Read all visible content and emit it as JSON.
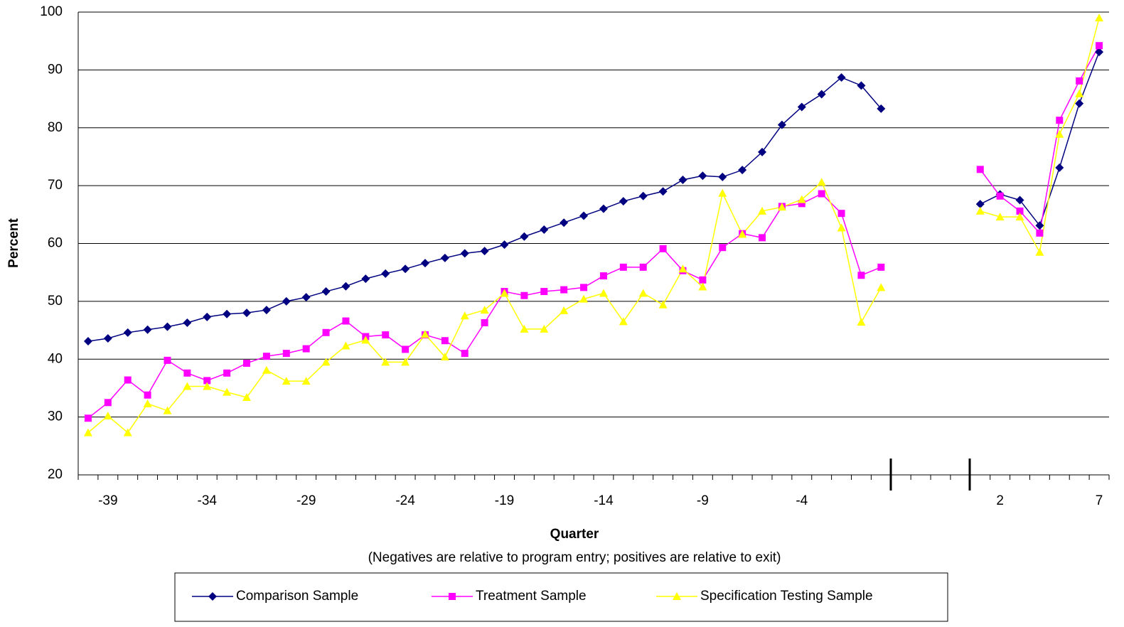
{
  "chart_data": {
    "type": "line",
    "y_label": "Percent",
    "x_label": "Quarter",
    "x_label_note": "(Negatives are relative to program entry; positives are relative to exit)",
    "categories": [
      null,
      "-39",
      null,
      null,
      null,
      null,
      "-34",
      null,
      null,
      null,
      null,
      "-29",
      null,
      null,
      null,
      null,
      "-24",
      null,
      null,
      null,
      null,
      "-19",
      null,
      null,
      null,
      null,
      "-14",
      null,
      null,
      null,
      null,
      "-9",
      null,
      null,
      null,
      null,
      "-4",
      null,
      null,
      null,
      null,
      null,
      null,
      null,
      null,
      null,
      "2",
      null,
      null,
      null,
      null,
      "7"
    ],
    "ylim": [
      20,
      100
    ],
    "yticks": [
      20,
      30,
      40,
      50,
      60,
      70,
      80,
      90,
      100
    ],
    "grid": true,
    "legend": "bottom",
    "series": [
      {
        "name": "Comparison Sample",
        "color": "#000080",
        "marker": "diamond",
        "values": [
          43.1,
          43.6,
          44.6,
          45.1,
          45.6,
          46.3,
          47.3,
          47.8,
          48.0,
          48.5,
          50.0,
          50.7,
          51.7,
          52.6,
          53.9,
          54.8,
          55.6,
          56.6,
          57.5,
          58.3,
          58.7,
          59.8,
          61.2,
          62.4,
          63.6,
          64.8,
          66.0,
          67.3,
          68.2,
          69.0,
          71.0,
          71.7,
          71.5,
          72.7,
          75.8,
          80.5,
          83.6,
          85.8,
          88.7,
          87.3,
          83.3,
          null,
          null,
          null,
          null,
          66.8,
          68.5,
          67.5,
          63.1,
          73.1,
          84.2,
          93.1
        ]
      },
      {
        "name": "Treatment Sample",
        "color": "#ff00ff",
        "marker": "square",
        "values": [
          29.8,
          32.5,
          36.4,
          33.8,
          39.8,
          37.6,
          36.3,
          37.6,
          39.3,
          40.5,
          41.0,
          41.8,
          44.6,
          46.6,
          43.9,
          44.2,
          41.7,
          44.2,
          43.2,
          41.0,
          46.3,
          51.7,
          51.0,
          51.7,
          52.0,
          52.4,
          54.4,
          55.9,
          55.9,
          59.1,
          55.3,
          53.7,
          59.3,
          61.7,
          61.0,
          66.4,
          66.9,
          68.6,
          65.2,
          54.5,
          55.9,
          null,
          null,
          null,
          null,
          72.8,
          68.2,
          65.6,
          61.8,
          81.3,
          88.1,
          94.2
        ]
      },
      {
        "name": "Specification Testing Sample",
        "color": "#ffff00",
        "marker": "triangle",
        "values": [
          27.3,
          30.2,
          27.3,
          32.3,
          31.1,
          35.3,
          35.3,
          34.3,
          33.4,
          38.1,
          36.2,
          36.2,
          39.5,
          42.3,
          43.3,
          39.5,
          39.5,
          44.3,
          40.4,
          47.5,
          48.5,
          51.4,
          45.2,
          45.2,
          48.4,
          50.4,
          51.4,
          46.5,
          51.4,
          49.4,
          55.6,
          52.5,
          68.7,
          61.6,
          65.6,
          66.3,
          67.6,
          70.6,
          62.7,
          46.4,
          52.4,
          null,
          null,
          null,
          null,
          65.6,
          64.6,
          64.6,
          58.5,
          78.9,
          85.9,
          99.0
        ]
      }
    ]
  }
}
